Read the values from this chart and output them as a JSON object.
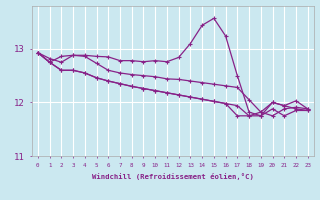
{
  "xlabel": "Windchill (Refroidissement éolien,°C)",
  "bg_color": "#cbe8f0",
  "grid_color": "#ffffff",
  "line_color": "#882288",
  "series": [
    [
      12.93,
      12.82,
      12.75,
      12.88,
      12.88,
      12.86,
      12.85,
      12.78,
      12.78,
      12.76,
      12.78,
      12.76,
      12.84,
      13.1,
      13.44,
      13.57,
      13.24,
      12.5,
      11.82,
      11.75,
      12.0,
      11.94,
      12.03,
      11.88
    ],
    [
      12.93,
      12.75,
      12.86,
      12.88,
      12.86,
      12.73,
      12.6,
      12.55,
      12.52,
      12.5,
      12.48,
      12.44,
      12.43,
      12.4,
      12.37,
      12.34,
      12.31,
      12.28,
      12.05,
      11.82,
      11.75,
      11.88,
      11.91,
      11.88
    ],
    [
      12.93,
      12.75,
      12.6,
      12.6,
      12.55,
      12.46,
      12.4,
      12.35,
      12.3,
      12.26,
      12.22,
      12.18,
      12.14,
      12.1,
      12.06,
      12.02,
      11.98,
      11.75,
      11.75,
      11.75,
      11.88,
      11.75,
      11.85,
      11.85
    ],
    [
      12.93,
      12.75,
      12.6,
      12.6,
      12.55,
      12.46,
      12.4,
      12.35,
      12.3,
      12.26,
      12.22,
      12.18,
      12.14,
      12.1,
      12.06,
      12.02,
      11.98,
      11.94,
      11.75,
      11.82,
      12.0,
      11.94,
      11.88,
      11.85
    ]
  ],
  "ylim": [
    11.0,
    13.8
  ],
  "yticks": [
    11,
    12,
    13
  ],
  "xticks": [
    0,
    1,
    2,
    3,
    4,
    5,
    6,
    7,
    8,
    9,
    10,
    11,
    12,
    13,
    14,
    15,
    16,
    17,
    18,
    19,
    20,
    21,
    22,
    23
  ]
}
